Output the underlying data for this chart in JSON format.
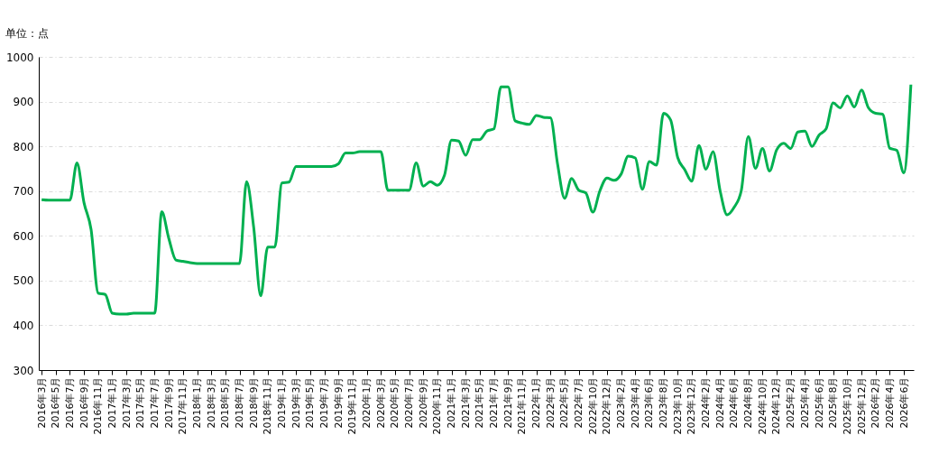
{
  "chart_data": {
    "type": "line",
    "ylabel": "单位：点",
    "categories": [
      "2016年3月",
      null,
      "2016年5月",
      null,
      "2016年7月",
      null,
      "2016年9月",
      null,
      "2016年11月",
      null,
      "2017年1月",
      null,
      "2017年3月",
      null,
      "2017年5月",
      null,
      "2017年7月",
      null,
      "2017年9月",
      null,
      "2017年11月",
      null,
      "2018年1月",
      null,
      "2018年3月",
      null,
      "2018年5月",
      null,
      "2018年7月",
      null,
      "2018年9月",
      null,
      "2018年11月",
      null,
      "2019年1月",
      null,
      "2019年3月",
      null,
      "2019年5月",
      null,
      "2019年7月",
      null,
      "2019年9月",
      null,
      "2019年11月",
      null,
      "2020年1月",
      null,
      "2020年3月",
      null,
      "2020年5月",
      null,
      "2020年7月",
      null,
      "2020年9月",
      null,
      "2020年11月",
      null,
      "2021年1月",
      null,
      "2021年3月",
      null,
      "2021年5月",
      null,
      "2021年7月",
      null,
      "2021年9月",
      null,
      "2021年11月",
      null,
      "2022年1月",
      null,
      "2022年3月",
      null,
      "2022年5月",
      null,
      "2022年7月",
      null,
      "2022年10月",
      null,
      "2022年12月",
      null,
      "2023年2月",
      null,
      "2023年4月",
      null,
      "2023年6月",
      null,
      "2023年8月",
      null,
      "2023年10月",
      null,
      "2023年12月",
      null,
      "2024年2月",
      null,
      "2024年4月",
      null,
      "2024年6月",
      null,
      "2024年8月",
      null,
      "2024年10月",
      null,
      "2024年12月",
      null,
      "2025年2月",
      null,
      "2025年4月",
      null,
      "2025年6月",
      null,
      "2025年8月",
      null,
      "2025年10月",
      null,
      "2025年12月",
      null,
      "2026年2月",
      null,
      "2026年4月",
      null,
      "2026年6月",
      null
    ],
    "series": [
      {
        "color": "#00b050",
        "values": [
          681,
          680,
          680,
          680,
          680,
          763,
          674,
          614,
          472,
          469,
          427,
          425,
          425,
          427,
          427,
          427,
          427,
          654,
          594,
          546,
          543,
          540,
          538,
          538,
          538,
          538,
          538,
          538,
          538,
          721,
          620,
          466,
          575,
          575,
          718,
          720,
          755,
          755,
          755,
          755,
          755,
          755,
          761,
          785,
          785,
          788,
          788,
          788,
          788,
          702,
          702,
          702,
          702,
          763,
          711,
          721,
          713,
          735,
          814,
          812,
          780,
          815,
          815,
          834,
          839,
          933,
          933,
          857,
          852,
          849,
          869,
          865,
          864,
          761,
          684,
          728,
          702,
          696,
          653,
          701,
          729,
          724,
          738,
          778,
          774,
          704,
          766,
          758,
          874,
          859,
          775,
          748,
          722,
          802,
          749,
          788,
          701,
          647,
          664,
          701,
          822,
          751,
          795,
          745,
          792,
          807,
          795,
          832,
          834,
          800,
          825,
          839,
          897,
          886,
          913,
          888,
          926,
          886,
          874,
          872,
          796,
          791,
          741,
          938
        ]
      }
    ],
    "ylim": [
      300,
      1000
    ],
    "yticks": [
      300,
      400,
      500,
      600,
      700,
      800,
      900,
      1000
    ],
    "grid": "y",
    "line_style": "solid",
    "marker": "none"
  }
}
